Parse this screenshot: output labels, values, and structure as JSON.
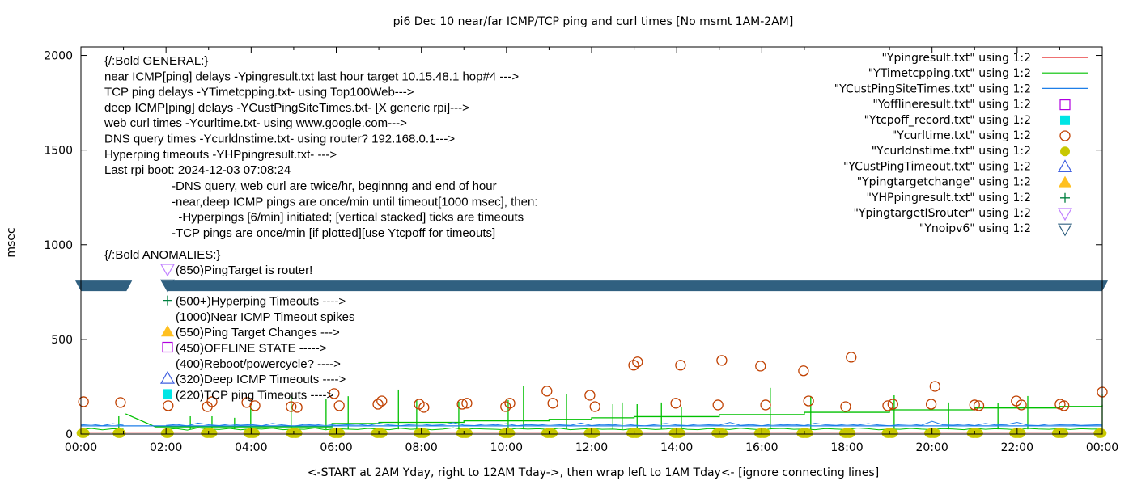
{
  "chart_data": {
    "type": "line",
    "title": "pi6 Dec 10  near/far ICMP/TCP ping and curl times [No msmt 1AM-2AM]",
    "xlabel": "<-START at 2AM Yday, right to 12AM Tday->, then wrap left to 1AM Tday<- [ignore connecting lines]",
    "ylabel": "msec",
    "xlim_hours": [
      0,
      24
    ],
    "ylim": [
      0,
      2045
    ],
    "x_ticks": [
      "00:00",
      "02:00",
      "04:00",
      "06:00",
      "08:00",
      "10:00",
      "12:00",
      "14:00",
      "16:00",
      "18:00",
      "20:00",
      "22:00",
      "00:00"
    ],
    "y_ticks": [
      0,
      500,
      1000,
      1500,
      2000
    ],
    "grid": false,
    "legend_position": "top-right",
    "legend": [
      {
        "label": "\"Ypingresult.txt\" using 1:2",
        "style": "line",
        "color": "#e41a1c"
      },
      {
        "label": "\"YTimetcpping.txt\" using 1:2",
        "style": "line",
        "color": "#00c000"
      },
      {
        "label": "\"YCustPingSiteTimes.txt\" using 1:2",
        "style": "line",
        "color": "#1e7fe8"
      },
      {
        "label": "\"Yofflineresult.txt\" using 1:2",
        "style": "open-square",
        "color": "#b000e0"
      },
      {
        "label": "\"Ytcpoff_record.txt\" using 1:2",
        "style": "filled-square",
        "color": "#00e5e5"
      },
      {
        "label": "\"Ycurltime.txt\" using 1:2",
        "style": "open-circle",
        "color": "#c04000"
      },
      {
        "label": "\"Ycurldnstime.txt\" using 1:2",
        "style": "filled-circle",
        "color": "#c8c800"
      },
      {
        "label": "\"YCustPingTimeout.txt\" using 1:2",
        "style": "open-triangle-up",
        "color": "#4060e0"
      },
      {
        "label": "\"Ypingtargetchange\" using 1:2",
        "style": "filled-triangle-up",
        "color": "#ffc020"
      },
      {
        "label": "\"YHPpingresult.txt\" using 1:2",
        "style": "plus",
        "color": "#008040"
      },
      {
        "label": "\"YpingtargetISrouter\" using 1:2",
        "style": "open-triangle-down",
        "color": "#c080ff"
      },
      {
        "label": "\"Ynoipv6\" using 1:2",
        "style": "open-triangle-down",
        "color": "#306080"
      }
    ],
    "general_notes": [
      "{/:Bold GENERAL:}",
      "near ICMP[ping] delays -Ypingresult.txt last hour target 10.15.48.1 hop#4 --->",
      "TCP ping delays -YTimetcpping.txt- using Top100Web--->",
      "deep ICMP[ping] delays -YCustPingSiteTimes.txt- [X generic rpi]--->",
      "web curl times -Ycurltime.txt- using www.google.com--->",
      "DNS query times -Ycurldnstime.txt- using router? 192.168.0.1--->",
      "Hyperping timeouts -YHPpingresult.txt- --->",
      "Last rpi boot: 2024-12-03 07:08:24"
    ],
    "general_subnotes": [
      "-DNS query, web curl are twice/hr, beginnng and end of hour",
      "-near,deep ICMP pings are once/min until timeout[1000 msec], then:",
      "  -Hyperpings [6/min] initiated; [vertical stacked] ticks are timeouts",
      "-TCP pings are once/min [if plotted][use Ytcpoff for timeouts]"
    ],
    "anomalies_title": "{/:Bold ANOMALIES:}",
    "anomalies": [
      {
        "marker": "open-triangle-down",
        "color": "#c080ff",
        "text": "(850)PingTarget is router!"
      },
      {
        "marker": "open-triangle-down",
        "color": "#306080",
        "text": ""
      },
      {
        "marker": "plus",
        "color": "#008040",
        "text": "(500+)Hyperping Timeouts ---->"
      },
      {
        "marker": "none",
        "color": "",
        "text": "(1000)Near ICMP Timeout spikes"
      },
      {
        "marker": "filled-triangle-up",
        "color": "#ffc020",
        "text": "(550)Ping Target Changes --->"
      },
      {
        "marker": "open-square",
        "color": "#b000e0",
        "text": "(450)OFFLINE STATE ----->"
      },
      {
        "marker": "none",
        "color": "",
        "text": "(400)Reboot/powercycle? ---->"
      },
      {
        "marker": "open-triangle-up",
        "color": "#4060e0",
        "text": "(320)Deep ICMP Timeouts ---->"
      },
      {
        "marker": "filled-square",
        "color": "#00e5e5",
        "text": "(220)TCP ping Timeouts ---->"
      }
    ],
    "series": {
      "Ypingresult": {
        "hours": [
          0,
          24
        ],
        "values": [
          10,
          10
        ]
      },
      "YCustPingSiteTimes": {
        "values": [
          48,
          52,
          44,
          55,
          47,
          null,
          null,
          null,
          46,
          51,
          43,
          58,
          49,
          45,
          53,
          47,
          50,
          44,
          56,
          48,
          42,
          51,
          47,
          54,
          46,
          49,
          52,
          45,
          57,
          48,
          44,
          50,
          53,
          46,
          49,
          60,
          47,
          45,
          52,
          48,
          55,
          44,
          50,
          47,
          53,
          49,
          46,
          58,
          45,
          51,
          48,
          54,
          47,
          43,
          50,
          56,
          48,
          45,
          52,
          49,
          47,
          61,
          46,
          50,
          44,
          53,
          48,
          51,
          45,
          57,
          49,
          46,
          52,
          47,
          55,
          48,
          44,
          50,
          53,
          46,
          68,
          49,
          47,
          52,
          45,
          56,
          48,
          50,
          62,
          47,
          45,
          53,
          49,
          51,
          46,
          48,
          50
        ],
        "connecting_line": [
          [
            0,
            43
          ],
          [
            24,
            43
          ]
        ]
      },
      "YTimetcpping": {
        "values": [
          24,
          30,
          22,
          28,
          26,
          null,
          null,
          null,
          25,
          29,
          21,
          33,
          27,
          24,
          30,
          22,
          28,
          26,
          31,
          23,
          27,
          25,
          32,
          22,
          29,
          26,
          24,
          30,
          27,
          23,
          31,
          25,
          28,
          22,
          26,
          33,
          24,
          29,
          27,
          25,
          22,
          30,
          26,
          28,
          24,
          31,
          23,
          27,
          29,
          25,
          26,
          22,
          30,
          28,
          24,
          27,
          32,
          25,
          23,
          29,
          27,
          24,
          31,
          26,
          22,
          28,
          30,
          25,
          27,
          23,
          29,
          26,
          24,
          32,
          28,
          22,
          27,
          25,
          30,
          26,
          24,
          29,
          27,
          23,
          31,
          25,
          28,
          26,
          22,
          30,
          27,
          25,
          29,
          24,
          28,
          26,
          27
        ],
        "spikes": [
          [
            0.89,
            94
          ],
          [
            2.57,
            94
          ],
          [
            3.08,
            94
          ],
          [
            3.61,
            86
          ],
          [
            3.99,
            158
          ],
          [
            4.94,
            200
          ],
          [
            5.76,
            184
          ],
          [
            6.28,
            200
          ],
          [
            7.46,
            235
          ],
          [
            7.89,
            180
          ],
          [
            8.88,
            171
          ],
          [
            10.04,
            180
          ],
          [
            10.4,
            252
          ],
          [
            11.41,
            210
          ],
          [
            12.5,
            158
          ],
          [
            12.72,
            167
          ],
          [
            13.07,
            158
          ],
          [
            13.64,
            167
          ],
          [
            14.11,
            145
          ],
          [
            16.2,
            244
          ],
          [
            17.15,
            201
          ],
          [
            19.11,
            205
          ],
          [
            20.39,
            167
          ],
          [
            21.55,
            163
          ],
          [
            22.25,
            201
          ],
          [
            24,
            210
          ]
        ],
        "connecting_line": [
          [
            1.05,
            107
          ],
          [
            1.75,
            38
          ],
          [
            5.9,
            56
          ],
          [
            7,
            62
          ],
          [
            9,
            70
          ],
          [
            11,
            78
          ],
          [
            12,
            86
          ],
          [
            13,
            92
          ],
          [
            15,
            103
          ],
          [
            17,
            115
          ],
          [
            19,
            128
          ],
          [
            21,
            138
          ],
          [
            23,
            146
          ],
          [
            24,
            154
          ]
        ]
      },
      "Ycurltime": [
        [
          0.06,
          171
        ],
        [
          0.93,
          167
        ],
        [
          2.05,
          150
        ],
        [
          2.97,
          145
        ],
        [
          3.08,
          171
        ],
        [
          3.9,
          167
        ],
        [
          4.09,
          150
        ],
        [
          4.94,
          145
        ],
        [
          5.08,
          141
        ],
        [
          5.95,
          214
        ],
        [
          6.07,
          150
        ],
        [
          6.98,
          158
        ],
        [
          7.07,
          175
        ],
        [
          7.95,
          158
        ],
        [
          8.06,
          141
        ],
        [
          8.96,
          158
        ],
        [
          9.07,
          163
        ],
        [
          9.98,
          145
        ],
        [
          10.08,
          163
        ],
        [
          10.95,
          227
        ],
        [
          11.09,
          163
        ],
        [
          11.96,
          205
        ],
        [
          12.08,
          145
        ],
        [
          12.99,
          364
        ],
        [
          13.08,
          381
        ],
        [
          13.98,
          163
        ],
        [
          14.09,
          364
        ],
        [
          14.97,
          154
        ],
        [
          15.06,
          389
        ],
        [
          15.97,
          359
        ],
        [
          16.09,
          154
        ],
        [
          16.98,
          334
        ],
        [
          17.1,
          175
        ],
        [
          17.97,
          145
        ],
        [
          18.1,
          406
        ],
        [
          18.96,
          150
        ],
        [
          19.08,
          158
        ],
        [
          19.98,
          158
        ],
        [
          20.07,
          252
        ],
        [
          21.0,
          154
        ],
        [
          21.1,
          150
        ],
        [
          21.98,
          175
        ],
        [
          22.1,
          154
        ],
        [
          23.01,
          158
        ],
        [
          23.1,
          150
        ],
        [
          24,
          222
        ]
      ],
      "Ycurldnstime": [
        [
          0.05,
          5
        ],
        [
          0.9,
          5
        ],
        [
          2.03,
          5
        ],
        [
          2.97,
          5
        ],
        [
          3.05,
          5
        ],
        [
          3.97,
          5
        ],
        [
          4.05,
          5
        ],
        [
          4.97,
          5
        ],
        [
          5.05,
          5
        ],
        [
          5.97,
          5
        ],
        [
          6.05,
          5
        ],
        [
          6.97,
          5
        ],
        [
          7.05,
          5
        ],
        [
          7.97,
          5
        ],
        [
          8.05,
          5
        ],
        [
          8.97,
          5
        ],
        [
          9.05,
          5
        ],
        [
          9.97,
          5
        ],
        [
          10.05,
          5
        ],
        [
          10.97,
          5
        ],
        [
          11.05,
          5
        ],
        [
          11.97,
          5
        ],
        [
          12.05,
          5
        ],
        [
          12.97,
          5
        ],
        [
          13.05,
          5
        ],
        [
          13.97,
          5
        ],
        [
          14.05,
          5
        ],
        [
          14.97,
          5
        ],
        [
          15.05,
          5
        ],
        [
          15.97,
          5
        ],
        [
          16.05,
          5
        ],
        [
          16.97,
          5
        ],
        [
          17.05,
          5
        ],
        [
          17.97,
          5
        ],
        [
          18.05,
          5
        ],
        [
          18.97,
          5
        ],
        [
          19.05,
          5
        ],
        [
          19.97,
          5
        ],
        [
          20.05,
          5
        ],
        [
          20.97,
          5
        ],
        [
          21.05,
          5
        ],
        [
          21.97,
          5
        ],
        [
          22.05,
          5
        ],
        [
          22.97,
          5
        ],
        [
          23.05,
          5
        ],
        [
          23.95,
          5
        ]
      ],
      "Ynoipv6": {
        "value": 785,
        "hour_ranges": [
          [
            0,
            1.07
          ],
          [
            2.03,
            24
          ]
        ]
      }
    }
  }
}
